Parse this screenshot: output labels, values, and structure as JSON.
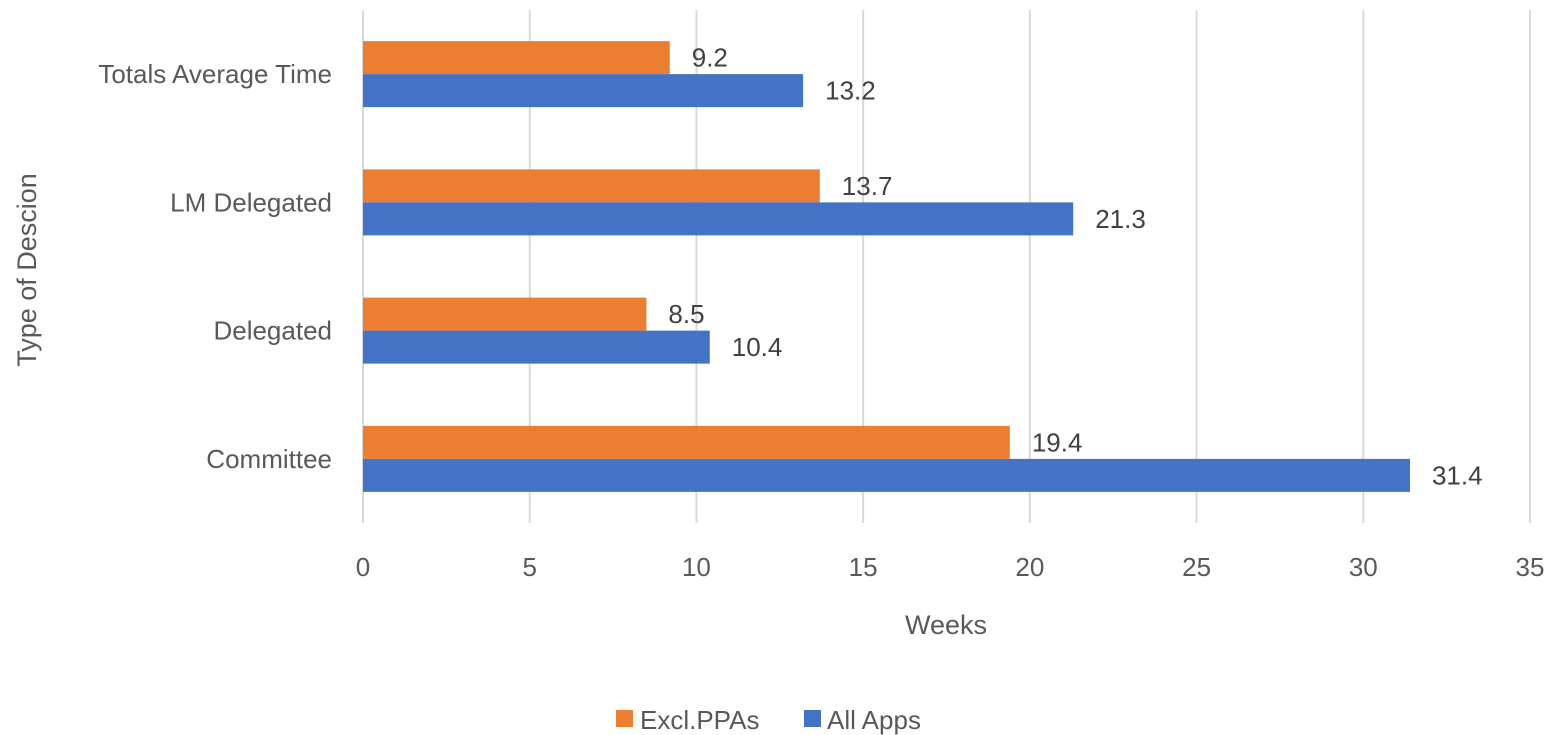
{
  "chart_data": {
    "type": "bar",
    "orientation": "horizontal",
    "categories": [
      "Totals Average Time",
      "LM Delegated",
      "Delegated",
      "Committee"
    ],
    "series": [
      {
        "name": "Excl.PPAs",
        "color": "#ED7D31",
        "values": [
          9.2,
          13.7,
          8.5,
          19.4
        ],
        "labels": [
          "9.2",
          "13.7",
          "8.5",
          "19.4"
        ]
      },
      {
        "name": "All Apps",
        "color": "#4472C4",
        "values": [
          13.2,
          21.3,
          10.4,
          31.4
        ],
        "labels": [
          "13.2",
          "21.3",
          "10.4",
          "31.4"
        ]
      }
    ],
    "xlabel": "Weeks",
    "ylabel": "Type of Descion",
    "xlim": [
      0,
      35
    ],
    "xticks": [
      "0",
      "5",
      "10",
      "15",
      "20",
      "25",
      "30",
      "35"
    ],
    "grid": "vertical",
    "legend_position": "bottom"
  }
}
